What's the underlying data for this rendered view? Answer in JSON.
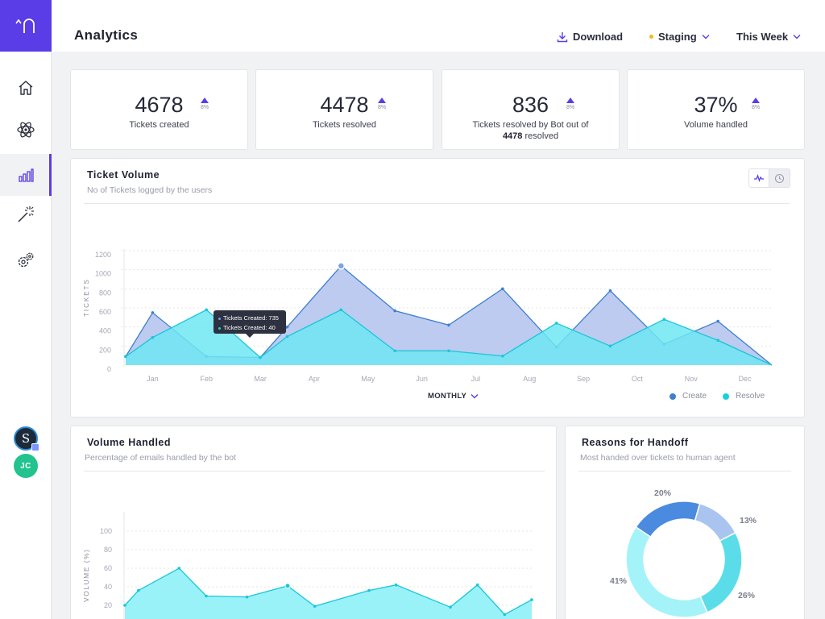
{
  "header": {
    "title": "Analytics",
    "download_label": "Download",
    "environment_label": "Staging",
    "range_label": "This Week"
  },
  "sidebar": {
    "items": [
      {
        "icon": "home-icon"
      },
      {
        "icon": "atom-icon"
      },
      {
        "icon": "bar-chart-icon",
        "active": true
      },
      {
        "icon": "magic-wand-icon"
      },
      {
        "icon": "gear-icon"
      }
    ],
    "avatars": [
      {
        "initials": "S"
      },
      {
        "initials": "JC"
      }
    ]
  },
  "stats": [
    {
      "value": "4678",
      "delta": "8%",
      "label": "Tickets created"
    },
    {
      "value": "4478",
      "delta": "8%",
      "label": "Tickets resolved"
    },
    {
      "value": "836",
      "delta": "8%",
      "label_line1": "Tickets resolved by Bot out of",
      "label_bold": "4478",
      "label_line2_rest": " resolved"
    },
    {
      "value": "37%",
      "delta": "8%",
      "label": "Volume handled"
    }
  ],
  "ticket_volume": {
    "title": "Ticket Volume",
    "subtitle": "No of Tickets logged by the users",
    "period_label": "MONTHLY",
    "tooltip": {
      "line1": "Tickets Created: 735",
      "line2": "Tickets Created: 40"
    }
  },
  "volume_handled": {
    "title": "Volume Handled",
    "subtitle": "Percentage of emails handled by the bot"
  },
  "handoff": {
    "title": "Reasons for Handoff",
    "subtitle": "Most handed over tickets to human agent"
  },
  "colors": {
    "accent": "#5a3de6",
    "create": "#3f7fd0",
    "resolve": "#1ccfe0",
    "create_fill": "#b8c8ee",
    "resolve_fill": "#6fe6f2"
  },
  "chart_data": [
    {
      "type": "area",
      "xlabel": "",
      "ylabel": "TICKETS",
      "ylim": [
        0,
        1200
      ],
      "yticks": [
        "0",
        "200",
        "400",
        "600",
        "800",
        "1000",
        "1200"
      ],
      "categories": [
        "Jan",
        "Feb",
        "Mar",
        "Apr",
        "May",
        "Jun",
        "Jul",
        "Aug",
        "Sep",
        "Oct",
        "Nov",
        "Dec"
      ],
      "x": [
        0,
        0.5,
        1.5,
        2.5,
        3,
        4,
        5,
        6,
        7,
        8,
        9,
        10,
        11,
        12
      ],
      "series": [
        {
          "name": "Create",
          "values": [
            90,
            550,
            90,
            80,
            400,
            1040,
            570,
            420,
            800,
            190,
            780,
            220,
            460,
            0
          ]
        },
        {
          "name": "Resolve",
          "values": [
            90,
            290,
            580,
            80,
            300,
            580,
            150,
            150,
            95,
            440,
            200,
            480,
            260,
            0
          ]
        }
      ],
      "legend": "bottom-right",
      "grid": true
    },
    {
      "type": "area",
      "xlabel": "",
      "ylabel": "VOLUME (%)",
      "ylim": [
        0,
        100
      ],
      "yticks": [
        "20",
        "40",
        "60",
        "80",
        "100"
      ],
      "x": [
        0,
        0.5,
        2,
        3,
        4.5,
        6,
        7,
        9,
        10,
        12,
        13,
        14,
        15
      ],
      "series": [
        {
          "name": "Volume",
          "values": [
            20,
            36,
            60,
            30,
            29,
            41,
            19,
            36,
            42,
            18,
            42,
            10,
            26
          ]
        }
      ],
      "grid": true
    },
    {
      "type": "pie",
      "labels": [
        "20%",
        "13%",
        "26%",
        "41%"
      ],
      "values": [
        20,
        13,
        26,
        41
      ]
    }
  ]
}
